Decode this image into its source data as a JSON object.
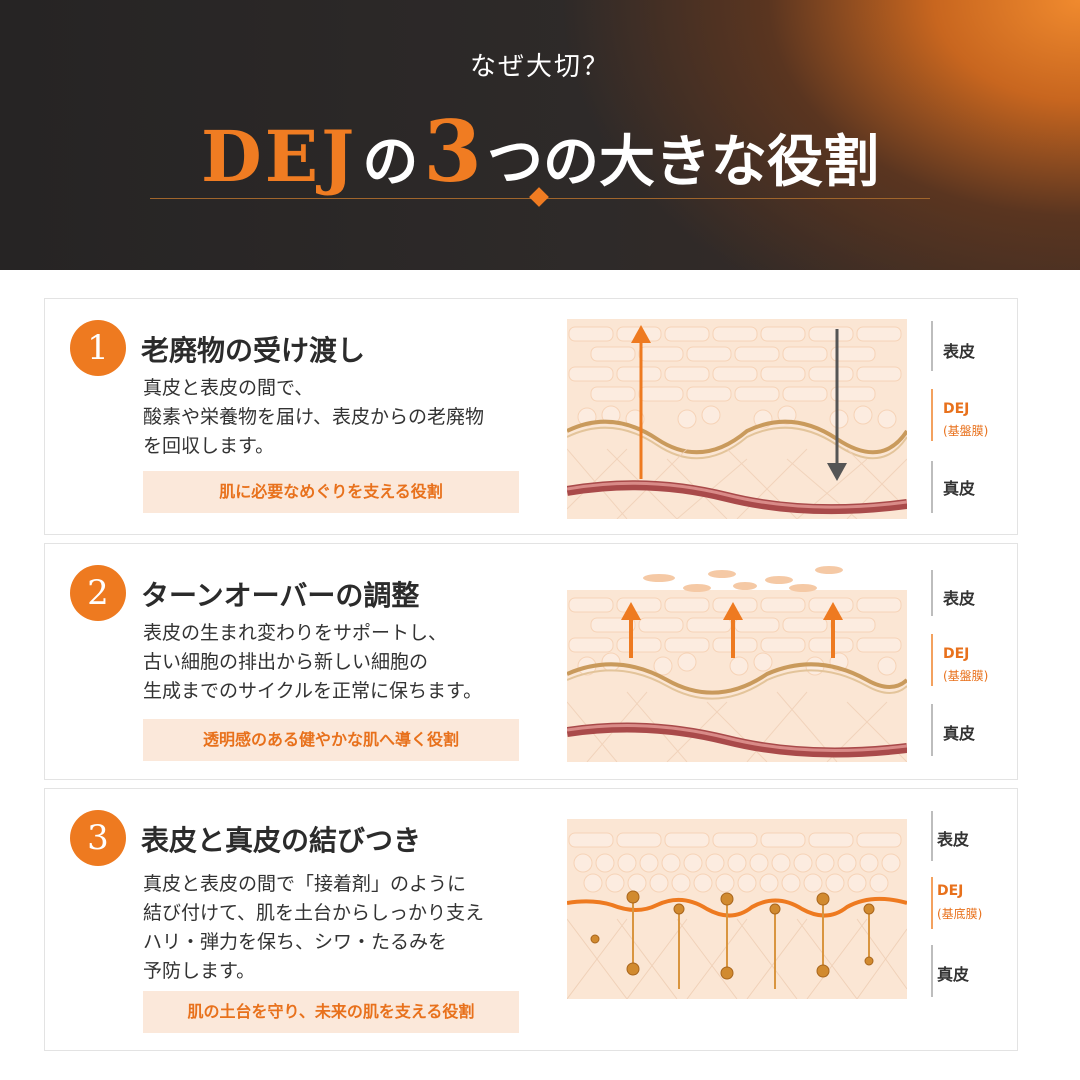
{
  "header": {
    "kicker": "なぜ大切？",
    "title_dej": "DEJ",
    "title_no": "の",
    "title_num": "3",
    "title_rest": "つの大きな役割"
  },
  "colors": {
    "accent": "#ee7a20",
    "dark_bg": "#262424",
    "tag_bg": "#fbe8da"
  },
  "cards": [
    {
      "number": "1",
      "title": "老廃物の受け渡し",
      "desc": [
        "真皮と表皮の間で、",
        "酸素や栄養物を届け、表皮からの老廃物",
        "を回収します。"
      ],
      "tagline": "肌に必要なめぐりを支える役割",
      "labels": {
        "epidermis": "表皮",
        "dej": "DEJ",
        "dej_sub": "(基盤膜)",
        "dermis": "真皮"
      }
    },
    {
      "number": "2",
      "title": "ターンオーバーの調整",
      "desc": [
        "表皮の生まれ変わりをサポートし、",
        "古い細胞の排出から新しい細胞の",
        "生成までのサイクルを正常に保ちます。"
      ],
      "tagline": "透明感のある健やかな肌へ導く役割",
      "labels": {
        "epidermis": "表皮",
        "dej": "DEJ",
        "dej_sub": "(基盤膜)",
        "dermis": "真皮"
      }
    },
    {
      "number": "3",
      "title": "表皮と真皮の結びつき",
      "desc": [
        "真皮と表皮の間で「接着剤」のように",
        "結び付けて、肌を土台からしっかり支え",
        "ハリ・弾力を保ち、シワ・たるみを",
        "予防します。"
      ],
      "tagline": "肌の土台を守り、未来の肌を支える役割",
      "labels": {
        "epidermis": "表皮",
        "dej": "DEJ",
        "dej_sub": "(基底膜)",
        "dermis": "真皮"
      }
    }
  ]
}
